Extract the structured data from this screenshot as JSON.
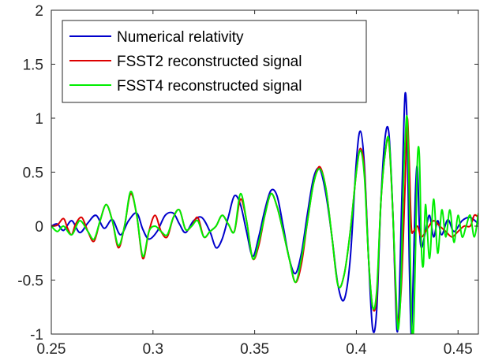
{
  "chart_data": {
    "type": "line",
    "title": "",
    "xlabel": "",
    "ylabel": "",
    "xlim": [
      0.25,
      0.46
    ],
    "ylim": [
      -1,
      2
    ],
    "x_ticks": [
      0.25,
      0.3,
      0.35,
      0.4,
      0.45
    ],
    "x_tick_labels": [
      "0.25",
      "0.3",
      "0.35",
      "0.4",
      "0.45"
    ],
    "y_ticks": [
      -1,
      -0.5,
      0,
      0.5,
      1,
      1.5,
      2
    ],
    "y_tick_labels": [
      "-1",
      "-0.5",
      "0",
      "0.5",
      "1",
      "1.5",
      "2"
    ],
    "grid": false,
    "legend_position": "top-left",
    "series": [
      {
        "name": "Numerical relativity",
        "color": "#0000cc",
        "x": [
          0.25,
          0.253,
          0.256,
          0.26,
          0.264,
          0.268,
          0.272,
          0.276,
          0.28,
          0.284,
          0.288,
          0.292,
          0.295,
          0.298,
          0.302,
          0.306,
          0.31,
          0.313,
          0.316,
          0.32,
          0.324,
          0.328,
          0.331,
          0.334,
          0.337,
          0.34,
          0.343,
          0.346,
          0.349,
          0.352,
          0.355,
          0.358,
          0.361,
          0.364,
          0.367,
          0.37,
          0.373,
          0.376,
          0.379,
          0.382,
          0.385,
          0.388,
          0.391,
          0.394,
          0.397,
          0.4,
          0.402,
          0.404,
          0.406,
          0.408,
          0.41,
          0.412,
          0.414,
          0.416,
          0.418,
          0.419,
          0.42,
          0.421,
          0.422,
          0.423,
          0.424,
          0.425,
          0.426,
          0.427,
          0.428,
          0.429,
          0.43,
          0.431,
          0.432,
          0.434,
          0.436,
          0.438,
          0.44,
          0.442,
          0.445,
          0.448,
          0.452,
          0.456,
          0.46
        ],
        "y": [
          0.0,
          0.02,
          -0.04,
          0.05,
          -0.06,
          0.03,
          0.1,
          -0.02,
          0.06,
          -0.08,
          0.05,
          0.12,
          -0.03,
          -0.12,
          -0.05,
          0.1,
          0.12,
          0.02,
          -0.06,
          0.05,
          0.08,
          -0.05,
          -0.2,
          -0.12,
          0.08,
          0.28,
          0.2,
          -0.05,
          -0.28,
          -0.1,
          0.15,
          0.33,
          0.28,
          0.0,
          -0.3,
          -0.44,
          -0.25,
          0.12,
          0.45,
          0.53,
          0.3,
          -0.1,
          -0.55,
          -0.68,
          -0.3,
          0.6,
          0.88,
          0.55,
          -0.3,
          -0.95,
          -0.78,
          0.2,
          0.8,
          0.86,
          0.1,
          -0.5,
          -0.97,
          -0.75,
          0.0,
          0.7,
          1.23,
          0.9,
          -0.3,
          -1.0,
          -0.45,
          0.28,
          0.55,
          0.0,
          -0.2,
          -0.05,
          0.1,
          -0.1,
          0.05,
          -0.08,
          0.06,
          -0.05,
          0.05,
          0.08,
          0.02
        ]
      },
      {
        "name": "FSST2 reconstructed signal",
        "color": "#dd0000",
        "x": [
          0.25,
          0.253,
          0.256,
          0.258,
          0.26,
          0.262,
          0.265,
          0.268,
          0.271,
          0.274,
          0.277,
          0.28,
          0.283,
          0.286,
          0.289,
          0.292,
          0.295,
          0.298,
          0.301,
          0.304,
          0.307,
          0.31,
          0.313,
          0.316,
          0.319,
          0.322,
          0.325,
          0.328,
          0.331,
          0.334,
          0.337,
          0.34,
          0.343,
          0.346,
          0.349,
          0.352,
          0.355,
          0.358,
          0.361,
          0.364,
          0.367,
          0.37,
          0.373,
          0.376,
          0.379,
          0.382,
          0.385,
          0.388,
          0.391,
          0.394,
          0.397,
          0.4,
          0.402,
          0.404,
          0.406,
          0.408,
          0.41,
          0.412,
          0.414,
          0.416,
          0.418,
          0.42,
          0.422,
          0.424,
          0.425,
          0.426,
          0.427,
          0.428,
          0.43,
          0.432,
          0.435,
          0.438,
          0.441,
          0.444,
          0.447,
          0.45,
          0.453,
          0.456,
          0.458,
          0.46
        ],
        "y": [
          0.0,
          0.01,
          0.07,
          -0.02,
          -0.08,
          0.02,
          0.08,
          -0.05,
          -0.14,
          0.05,
          0.2,
          0.05,
          -0.2,
          0.0,
          0.3,
          0.1,
          -0.3,
          -0.05,
          0.1,
          -0.05,
          -0.1,
          0.08,
          0.15,
          -0.03,
          0.0,
          0.08,
          -0.1,
          -0.05,
          0.0,
          0.1,
          0.02,
          -0.05,
          0.25,
          0.05,
          -0.3,
          -0.18,
          0.1,
          0.3,
          0.18,
          -0.05,
          -0.3,
          -0.52,
          -0.35,
          0.05,
          0.4,
          0.55,
          0.35,
          -0.1,
          -0.55,
          -0.45,
          -0.05,
          0.5,
          0.72,
          0.5,
          -0.3,
          -0.75,
          -0.65,
          0.2,
          0.65,
          0.78,
          0.1,
          -0.85,
          -0.6,
          0.4,
          1.0,
          0.6,
          0.0,
          -0.05,
          0.0,
          -0.1,
          -0.02,
          0.05,
          0.0,
          -0.05,
          -0.1,
          -0.05,
          0.0,
          0.0,
          0.1,
          0.08
        ]
      },
      {
        "name": "FSST4 reconstructed signal",
        "color": "#00ee00",
        "x": [
          0.25,
          0.253,
          0.256,
          0.26,
          0.264,
          0.268,
          0.271,
          0.274,
          0.277,
          0.28,
          0.283,
          0.286,
          0.289,
          0.292,
          0.295,
          0.298,
          0.301,
          0.304,
          0.307,
          0.31,
          0.313,
          0.316,
          0.319,
          0.322,
          0.325,
          0.328,
          0.331,
          0.334,
          0.337,
          0.34,
          0.343,
          0.346,
          0.349,
          0.352,
          0.355,
          0.358,
          0.361,
          0.364,
          0.367,
          0.37,
          0.373,
          0.376,
          0.379,
          0.382,
          0.385,
          0.388,
          0.391,
          0.394,
          0.397,
          0.4,
          0.402,
          0.404,
          0.406,
          0.408,
          0.41,
          0.412,
          0.414,
          0.416,
          0.418,
          0.42,
          0.421,
          0.422,
          0.423,
          0.424,
          0.425,
          0.426,
          0.427,
          0.428,
          0.429,
          0.43,
          0.431,
          0.432,
          0.433,
          0.434,
          0.436,
          0.438,
          0.44,
          0.442,
          0.444,
          0.446,
          0.448,
          0.45,
          0.452,
          0.454,
          0.456,
          0.458,
          0.46
        ],
        "y": [
          0.0,
          -0.05,
          0.0,
          -0.08,
          0.05,
          -0.05,
          -0.12,
          0.05,
          0.2,
          0.05,
          -0.18,
          0.0,
          0.32,
          0.1,
          -0.28,
          -0.05,
          0.0,
          -0.05,
          -0.08,
          0.08,
          0.15,
          -0.03,
          0.0,
          0.05,
          -0.1,
          -0.05,
          0.0,
          0.1,
          0.02,
          -0.05,
          0.3,
          0.05,
          -0.3,
          -0.15,
          0.1,
          0.3,
          0.18,
          -0.05,
          -0.3,
          -0.52,
          -0.3,
          0.05,
          0.4,
          0.53,
          0.35,
          -0.1,
          -0.55,
          -0.45,
          -0.05,
          0.5,
          0.7,
          0.45,
          -0.3,
          -0.75,
          -0.6,
          0.2,
          0.65,
          0.8,
          0.1,
          -0.85,
          -0.9,
          -0.5,
          0.3,
          0.8,
          1.0,
          0.3,
          -0.8,
          -1.0,
          -0.3,
          0.6,
          0.65,
          -0.2,
          -0.35,
          0.2,
          -0.3,
          0.25,
          -0.25,
          0.15,
          -0.1,
          0.15,
          -0.15,
          0.1,
          -0.1,
          0.0,
          0.1,
          -0.1,
          0.12
        ]
      }
    ]
  }
}
